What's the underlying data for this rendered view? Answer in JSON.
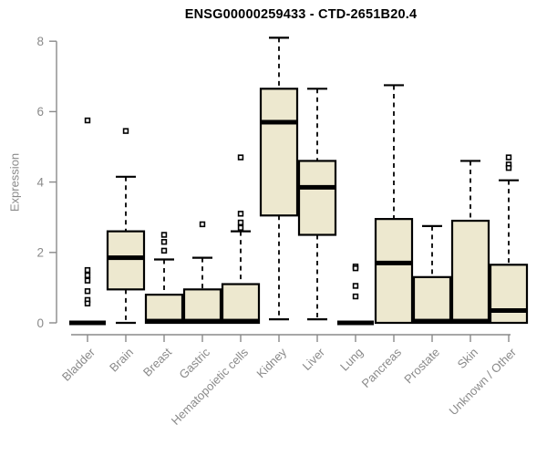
{
  "title": "ENSG00000259433 - CTD-2651B20.4",
  "chart_data": {
    "type": "boxplot",
    "title": "ENSG00000259433 - CTD-2651B20.4",
    "xlabel": "",
    "ylabel": "Expression",
    "ylim": [
      0,
      8
    ],
    "yticks": [
      0,
      2,
      4,
      6,
      8
    ],
    "grid": false,
    "legend": "none",
    "categories": [
      "Bladder",
      "Brain",
      "Breast",
      "Gastric",
      "Hematopoietic cells",
      "Kidney",
      "Liver",
      "Lung",
      "Pancreas",
      "Prostate",
      "Skin",
      "Unknown / Other"
    ],
    "series": [
      {
        "name": "Bladder",
        "whisker_low": 0,
        "q1": 0,
        "median": 0,
        "q3": 0,
        "whisker_high": 0,
        "outliers": [
          5.75,
          1.5,
          1.35,
          1.2,
          0.9,
          0.65,
          0.55
        ]
      },
      {
        "name": "Brain",
        "whisker_low": 0,
        "q1": 0.95,
        "median": 1.85,
        "q3": 2.6,
        "whisker_high": 4.15,
        "outliers": [
          5.45
        ]
      },
      {
        "name": "Breast",
        "whisker_low": 0,
        "q1": 0,
        "median": 0.05,
        "q3": 0.8,
        "whisker_high": 1.8,
        "outliers": [
          2.5,
          2.3,
          2.05
        ]
      },
      {
        "name": "Gastric",
        "whisker_low": 0,
        "q1": 0,
        "median": 0.05,
        "q3": 0.95,
        "whisker_high": 1.85,
        "outliers": [
          2.8
        ]
      },
      {
        "name": "Hematopoietic cells",
        "whisker_low": 0,
        "q1": 0,
        "median": 0.05,
        "q3": 1.1,
        "whisker_high": 2.6,
        "outliers": [
          4.7,
          3.1,
          2.85,
          2.7
        ]
      },
      {
        "name": "Kidney",
        "whisker_low": 0.1,
        "q1": 3.05,
        "median": 5.7,
        "q3": 6.65,
        "whisker_high": 8.1,
        "outliers": []
      },
      {
        "name": "Liver",
        "whisker_low": 0.1,
        "q1": 2.5,
        "median": 3.85,
        "q3": 4.6,
        "whisker_high": 6.65,
        "outliers": []
      },
      {
        "name": "Lung",
        "whisker_low": 0,
        "q1": 0,
        "median": 0,
        "q3": 0,
        "whisker_high": 0,
        "outliers": [
          1.6,
          1.55,
          1.05,
          0.75
        ]
      },
      {
        "name": "Pancreas",
        "whisker_low": 0,
        "q1": 0,
        "median": 1.7,
        "q3": 2.95,
        "whisker_high": 6.75,
        "outliers": []
      },
      {
        "name": "Prostate",
        "whisker_low": 0,
        "q1": 0,
        "median": 0.05,
        "q3": 1.3,
        "whisker_high": 2.75,
        "outliers": []
      },
      {
        "name": "Skin",
        "whisker_low": 0,
        "q1": 0,
        "median": 0.05,
        "q3": 2.9,
        "whisker_high": 4.6,
        "outliers": []
      },
      {
        "name": "Unknown / Other",
        "whisker_low": 0,
        "q1": 0,
        "median": 0.35,
        "q3": 1.65,
        "whisker_high": 4.05,
        "outliers": [
          4.7,
          4.5,
          4.4
        ]
      }
    ],
    "colors": {
      "box_fill": "#EDE8CF",
      "box_stroke": "#000000",
      "median": "#000000",
      "whisker": "#000000",
      "outlier_stroke": "#000000",
      "axis": "#8a8a8a",
      "tick_label": "#8a8a8a",
      "title": "#000000",
      "background": "#ffffff"
    }
  }
}
